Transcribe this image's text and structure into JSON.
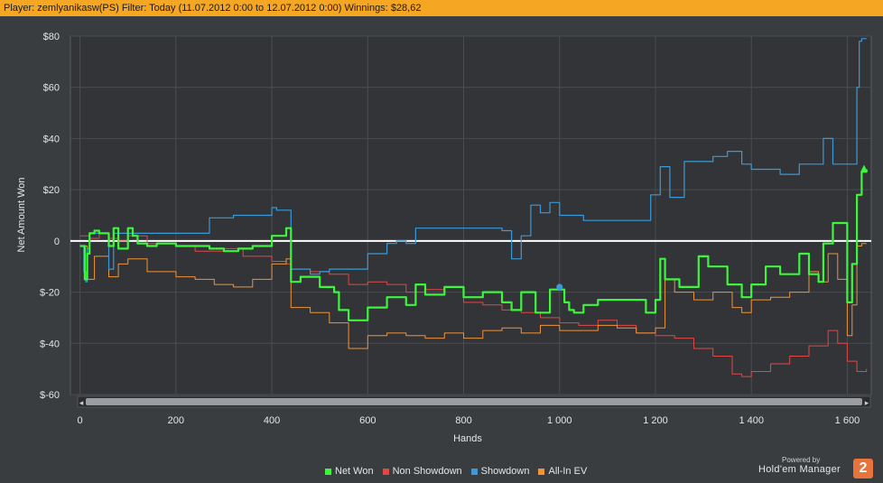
{
  "header": {
    "text": "Player: zemlyanikasw(PS) Filter: Today (11.07.2012 0:00 to 12.07.2012 0:00) Winnings: $28,62"
  },
  "colors": {
    "background": "#3a3d40",
    "plot_background": "#323437",
    "grid": "#4a4d51",
    "header": "#f5a623",
    "net_won": "#3ef53e",
    "non_showdown": "#e04848",
    "showdown": "#3a9ad9",
    "all_in_ev": "#f0933a",
    "zero_line": "#ffffff"
  },
  "chart_data": {
    "type": "line",
    "xlabel": "Hands",
    "ylabel": "Net Amount Won",
    "xlim": [
      -20,
      1650
    ],
    "ylim": [
      -60,
      80
    ],
    "xticks": [
      0,
      200,
      400,
      600,
      800,
      1000,
      1200,
      1400,
      1600
    ],
    "xtick_labels": [
      "0",
      "200",
      "400",
      "600",
      "800",
      "1 000",
      "1 200",
      "1 400",
      "1 600"
    ],
    "yticks": [
      80,
      60,
      40,
      20,
      0,
      -20,
      -40,
      -60
    ],
    "ytick_labels": [
      "$80",
      "$60",
      "$40",
      "$20",
      "0",
      "$-20",
      "$-40",
      "$-60"
    ],
    "grid": true,
    "legend_position": "bottom",
    "series": [
      {
        "name": "Net Won",
        "color_key": "net_won",
        "width": 2.2,
        "x": [
          0,
          10,
          15,
          20,
          30,
          40,
          60,
          70,
          80,
          100,
          110,
          120,
          140,
          160,
          200,
          240,
          270,
          300,
          330,
          360,
          400,
          430,
          440,
          460,
          500,
          530,
          540,
          560,
          600,
          640,
          680,
          700,
          720,
          760,
          800,
          840,
          880,
          900,
          920,
          950,
          980,
          1000,
          1010,
          1020,
          1030,
          1050,
          1080,
          1120,
          1180,
          1200,
          1210,
          1220,
          1250,
          1290,
          1310,
          1350,
          1380,
          1400,
          1430,
          1460,
          1500,
          1520,
          1540,
          1550,
          1570,
          1600,
          1610,
          1620,
          1630,
          1640
        ],
        "y": [
          -2,
          -15,
          -5,
          3,
          4,
          3,
          -2,
          5,
          -3,
          5,
          2,
          -1,
          -2,
          -1,
          -2,
          -2,
          -3,
          -4,
          -3,
          -2,
          2,
          5,
          -16,
          -14,
          -18,
          -20,
          -27,
          -31,
          -26,
          -22,
          -25,
          -17,
          -21,
          -18,
          -22,
          -20,
          -24,
          -27,
          -20,
          -28,
          -19,
          -19,
          -24,
          -27,
          -28,
          -25,
          -23,
          -23,
          -28,
          -23,
          -7,
          -15,
          -18,
          -6,
          -10,
          -17,
          -22,
          -17,
          -10,
          -13,
          -5,
          -13,
          -16,
          -1,
          7,
          -24,
          -9,
          18,
          27,
          28
        ]
      },
      {
        "name": "Non Showdown",
        "color_key": "non_showdown",
        "width": 1,
        "x": [
          0,
          20,
          40,
          60,
          80,
          100,
          140,
          200,
          240,
          300,
          340,
          400,
          430,
          440,
          480,
          520,
          560,
          600,
          640,
          680,
          720,
          760,
          800,
          840,
          880,
          920,
          960,
          1000,
          1040,
          1080,
          1120,
          1160,
          1200,
          1240,
          1280,
          1320,
          1360,
          1380,
          1400,
          1440,
          1480,
          1520,
          1560,
          1580,
          1600,
          1620,
          1640
        ],
        "y": [
          2,
          1,
          3,
          1,
          0,
          2,
          -1,
          -2,
          -4,
          -3,
          -6,
          -8,
          -9,
          -11,
          -12,
          -13,
          -17,
          -16,
          -17,
          -20,
          -19,
          -18,
          -24,
          -25,
          -27,
          -28,
          -30,
          -32,
          -33,
          -31,
          -33,
          -36,
          -37,
          -38,
          -42,
          -45,
          -52,
          -53,
          -51,
          -48,
          -45,
          -41,
          -35,
          -40,
          -47,
          -51,
          -50
        ]
      },
      {
        "name": "Showdown",
        "color_key": "showdown",
        "width": 1.2,
        "x": [
          0,
          8,
          12,
          15,
          20,
          30,
          60,
          70,
          100,
          110,
          200,
          260,
          270,
          300,
          320,
          350,
          400,
          410,
          440,
          460,
          480,
          500,
          520,
          560,
          600,
          640,
          660,
          680,
          700,
          740,
          780,
          820,
          860,
          880,
          900,
          920,
          940,
          960,
          980,
          1000,
          1020,
          1050,
          1100,
          1180,
          1190,
          1200,
          1210,
          1220,
          1230,
          1240,
          1260,
          1320,
          1350,
          1380,
          1400,
          1430,
          1460,
          1500,
          1540,
          1550,
          1560,
          1570,
          1580,
          1600,
          1615,
          1620,
          1625,
          1630,
          1640
        ],
        "y": [
          -2,
          -12,
          -16,
          -3,
          3,
          3,
          -11,
          3,
          3,
          3,
          3,
          3,
          9,
          9,
          10,
          10,
          13,
          12,
          -11,
          -11,
          -13,
          -12,
          -11,
          -11,
          -5,
          -1,
          0,
          -1,
          5,
          5,
          5,
          5,
          5,
          4,
          -7,
          2,
          14,
          11,
          15,
          10,
          10,
          8,
          8,
          8,
          18,
          18,
          29,
          29,
          17,
          17,
          31,
          33,
          35,
          30,
          28,
          28,
          26,
          30,
          30,
          40,
          40,
          30,
          30,
          30,
          30,
          60,
          78,
          79,
          79
        ]
      },
      {
        "name": "All-In EV",
        "color_key": "all_in_ev",
        "width": 1,
        "x": [
          0,
          15,
          30,
          60,
          80,
          100,
          140,
          200,
          240,
          280,
          320,
          360,
          400,
          430,
          440,
          480,
          520,
          560,
          600,
          640,
          680,
          720,
          760,
          800,
          840,
          880,
          920,
          960,
          1000,
          1040,
          1080,
          1120,
          1160,
          1200,
          1220,
          1240,
          1280,
          1320,
          1360,
          1380,
          1400,
          1440,
          1480,
          1520,
          1540,
          1560,
          1580,
          1600,
          1610,
          1620,
          1630,
          1640
        ],
        "y": [
          -2,
          -15,
          -6,
          -14,
          -9,
          -7,
          -12,
          -14,
          -15,
          -17,
          -18,
          -15,
          -9,
          -7,
          -26,
          -28,
          -32,
          -42,
          -37,
          -36,
          -37,
          -38,
          -36,
          -38,
          -35,
          -34,
          -36,
          -33,
          -35,
          -35,
          -33,
          -34,
          -36,
          -34,
          -15,
          -20,
          -23,
          -20,
          -26,
          -28,
          -23,
          -22,
          -20,
          -12,
          -16,
          -5,
          -15,
          -37,
          -25,
          -2,
          -1,
          -1
        ]
      }
    ],
    "markers": [
      {
        "series": "Showdown",
        "x": 1000,
        "y": -18
      },
      {
        "series": "Net Won",
        "x": 1635,
        "y": 28
      }
    ]
  },
  "legend": {
    "items": [
      {
        "label": "Net Won",
        "color_key": "net_won"
      },
      {
        "label": "Non Showdown",
        "color_key": "non_showdown"
      },
      {
        "label": "Showdown",
        "color_key": "showdown"
      },
      {
        "label": "All-In EV",
        "color_key": "all_in_ev"
      }
    ]
  },
  "branding": {
    "powered_by": "Powered by",
    "name": "Hold'em Manager",
    "badge": "2"
  }
}
